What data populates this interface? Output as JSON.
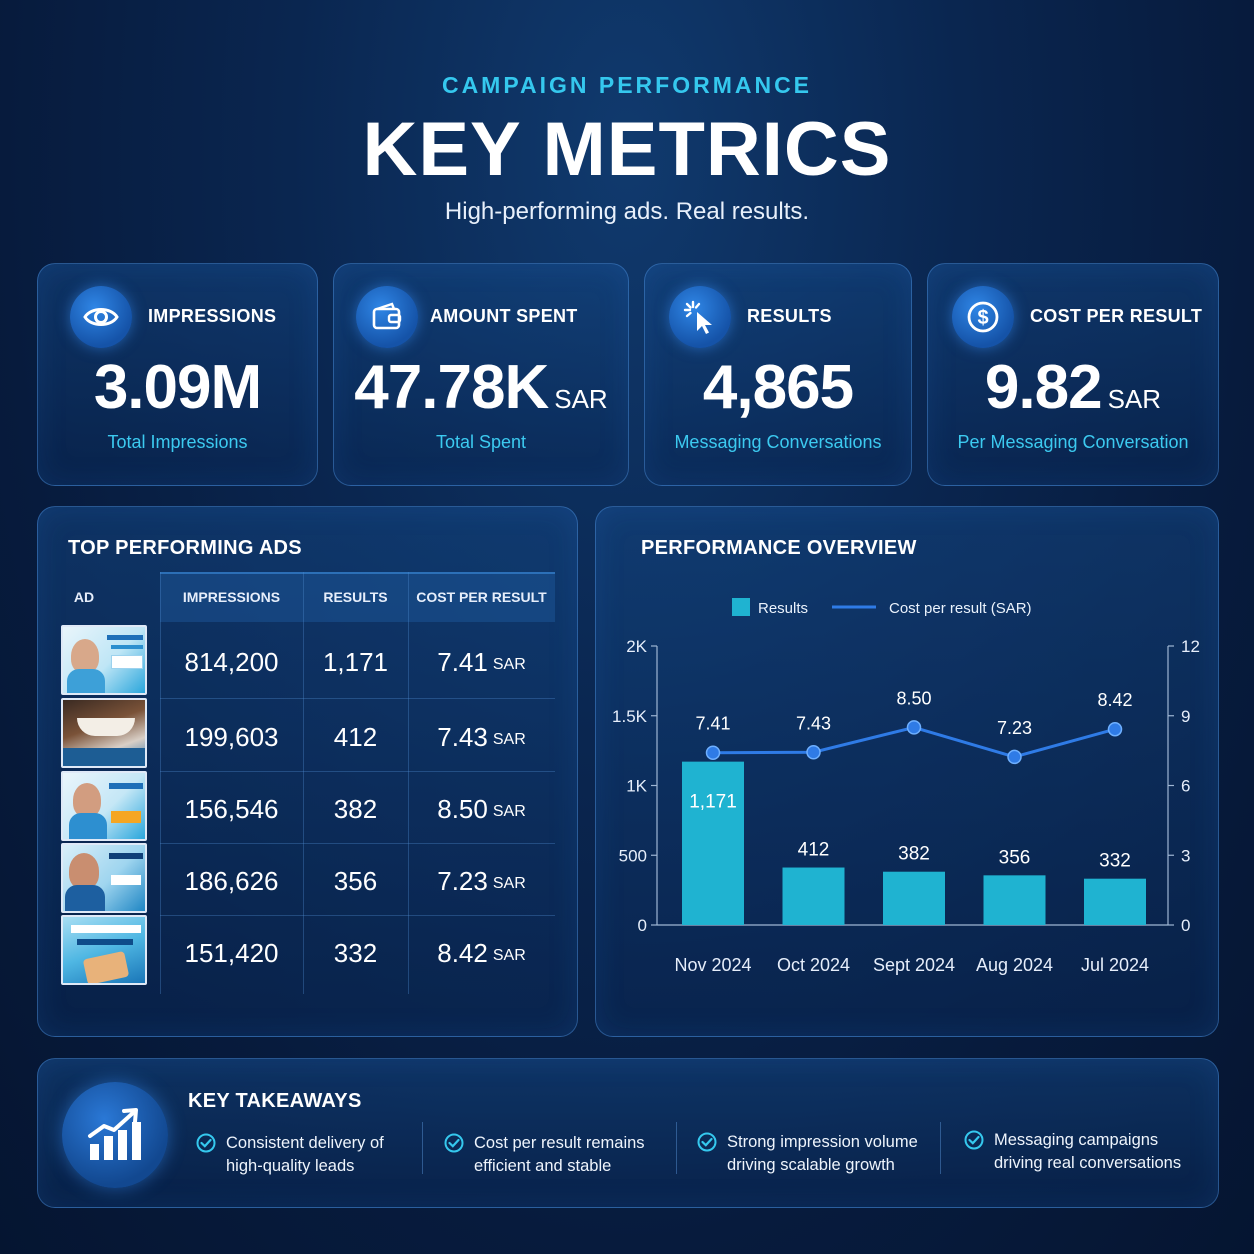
{
  "header": {
    "eyebrow": "CAMPAIGN PERFORMANCE",
    "title": "KEY METRICS",
    "subtitle": "High-performing ads. Real results."
  },
  "kpis": [
    {
      "icon": "eye-icon",
      "label": "IMPRESSIONS",
      "value": "3.09M",
      "unit": "",
      "sub": "Total Impressions"
    },
    {
      "icon": "wallet-icon",
      "label": "AMOUNT SPENT",
      "value": "47.78K",
      "unit": "SAR",
      "sub": "Total Spent"
    },
    {
      "icon": "cursor-click-icon",
      "label": "RESULTS",
      "value": "4,865",
      "unit": "",
      "sub": "Messaging Conversations"
    },
    {
      "icon": "dollar-coin-icon",
      "label": "COST PER RESULT",
      "value": "9.82",
      "unit": "SAR",
      "sub": "Per Messaging Conversation"
    }
  ],
  "top_ads": {
    "title": "TOP PERFORMING ADS",
    "columns": [
      "AD",
      "IMPRESSIONS",
      "RESULTS",
      "COST PER RESULT"
    ],
    "unit": "SAR",
    "rows": [
      {
        "impressions": "814,200",
        "results": "1,171",
        "cost": "7.41"
      },
      {
        "impressions": "199,603",
        "results": "412",
        "cost": "7.43"
      },
      {
        "impressions": "156,546",
        "results": "382",
        "cost": "8.50"
      },
      {
        "impressions": "186,626",
        "results": "356",
        "cost": "7.23"
      },
      {
        "impressions": "151,420",
        "results": "332",
        "cost": "8.42"
      }
    ]
  },
  "overview": {
    "title": "PERFORMANCE OVERVIEW"
  },
  "chart_data": {
    "type": "bar",
    "title": "PERFORMANCE OVERVIEW",
    "categories": [
      "Nov 2024",
      "Oct 2024",
      "Sept 2024",
      "Aug 2024",
      "Jul 2024"
    ],
    "series": [
      {
        "name": "Results",
        "type": "bar",
        "axis": "left",
        "values": [
          1171,
          412,
          382,
          356,
          332
        ],
        "labels": [
          "1,171",
          "412",
          "382",
          "356",
          "332"
        ],
        "color": "#1fb3d1"
      },
      {
        "name": "Cost per result (SAR)",
        "type": "line",
        "axis": "right",
        "values": [
          7.41,
          7.43,
          8.5,
          7.23,
          8.42
        ],
        "labels": [
          "7.41",
          "7.43",
          "8.50",
          "7.23",
          "8.42"
        ],
        "color": "#2f7be6"
      }
    ],
    "ylim_left": [
      0,
      2000
    ],
    "yticks_left": [
      "0",
      "500",
      "1K",
      "1.5K",
      "2K"
    ],
    "ylim_right": [
      0,
      12
    ],
    "yticks_right": [
      "0",
      "3",
      "6",
      "9",
      "12"
    ],
    "legend": "top-center",
    "grid": false
  },
  "takeaways": {
    "title": "KEY TAKEAWAYS",
    "items": [
      "Consistent delivery of\nhigh-quality leads",
      "Cost per result remains\nefficient and stable",
      "Strong impression volume\ndriving scalable growth",
      "Messaging campaigns\ndriving real conversations"
    ]
  },
  "colors": {
    "accent_cyan": "#35c8ee",
    "bar": "#1fb3d1",
    "line": "#2f7be6",
    "background": "#0a2650"
  }
}
